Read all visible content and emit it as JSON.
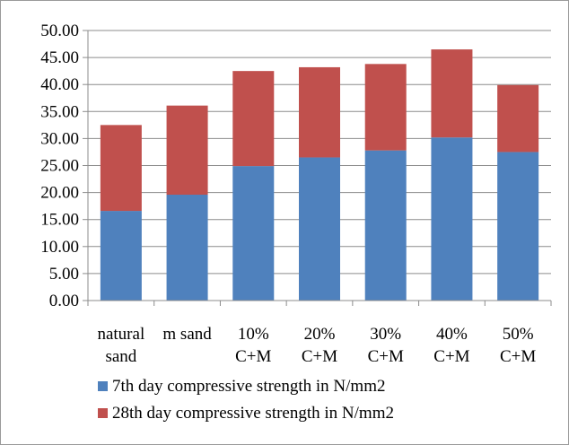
{
  "chart_data": {
    "type": "bar",
    "stacked": true,
    "categories": [
      [
        "natural",
        "sand"
      ],
      [
        "m sand",
        ""
      ],
      [
        "10%",
        "C+M"
      ],
      [
        "20%",
        "C+M"
      ],
      [
        "30%",
        "C+M"
      ],
      [
        "40%",
        "C+M"
      ],
      [
        "50%",
        "C+M"
      ]
    ],
    "series": [
      {
        "name": "7th day compressive strength in N/mm2",
        "color": "#4f81bd",
        "values": [
          16.6,
          19.6,
          24.9,
          26.5,
          27.8,
          30.2,
          27.5
        ]
      },
      {
        "name": "28th day compressive strength in N/mm2",
        "color": "#c0504d",
        "values": [
          15.9,
          16.5,
          17.6,
          16.7,
          16.0,
          16.3,
          12.4
        ]
      }
    ],
    "ylim": [
      0,
      50
    ],
    "ytick_step": 5,
    "ytick_labels": [
      "0.00",
      "5.00",
      "10.00",
      "15.00",
      "20.00",
      "25.00",
      "30.00",
      "35.00",
      "40.00",
      "45.00",
      "50.00"
    ],
    "grid": true,
    "grid_color": "#8c8c8c",
    "legend_position": "bottom",
    "title": "",
    "xlabel": "",
    "ylabel": ""
  }
}
